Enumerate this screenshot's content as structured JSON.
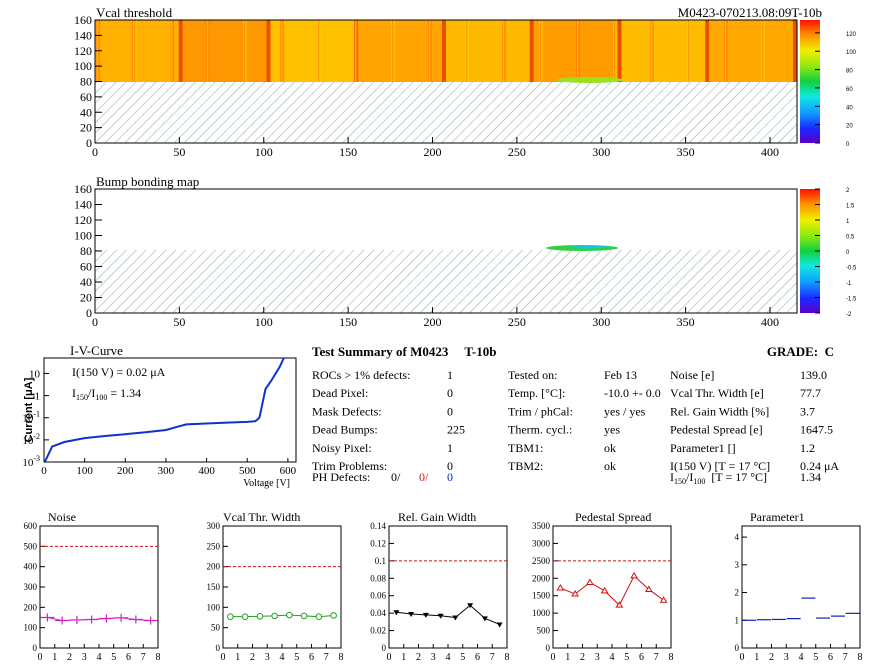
{
  "header": {
    "module_id": "M0423-070213.08:09T-10b"
  },
  "vcal_map": {
    "title": "Vcal threshold",
    "x_ticks": [
      "0",
      "50",
      "100",
      "150",
      "200",
      "250",
      "300",
      "350",
      "400"
    ],
    "y_ticks": [
      "0",
      "20",
      "40",
      "60",
      "80",
      "100",
      "120",
      "140",
      "160"
    ],
    "z_ticks": [
      "0",
      "20",
      "40",
      "60",
      "80",
      "100",
      "120"
    ]
  },
  "bump_map": {
    "title": "Bump bonding map",
    "x_ticks": [
      "0",
      "50",
      "100",
      "150",
      "200",
      "250",
      "300",
      "350",
      "400"
    ],
    "y_ticks": [
      "0",
      "20",
      "40",
      "60",
      "80",
      "100",
      "120",
      "140",
      "160"
    ],
    "z_ticks": [
      "-2",
      "-1.5",
      "-1",
      "-0.5",
      "0",
      "0.5",
      "1",
      "1.5",
      "2"
    ]
  },
  "iv": {
    "title": "I-V-Curve",
    "xlabel": "Voltage [V]",
    "ylabel": "Current [μA]",
    "x_ticks": [
      "0",
      "100",
      "200",
      "300",
      "400",
      "500",
      "600"
    ],
    "note1": "I(150 V) = 0.02 μA",
    "note2_a": "I",
    "note2_sub1": "150",
    "note2_b": "/I",
    "note2_sub2": "100",
    "note2_c": "=  1.34"
  },
  "summary": {
    "title": "Test Summary of M0423     T-10b",
    "grade": "GRADE:  C",
    "col1": [
      {
        "label": "ROCs > 1% defects:",
        "value": "1"
      },
      {
        "label": "Dead Pixel:",
        "value": "0"
      },
      {
        "label": "Mask Defects:",
        "value": "0"
      },
      {
        "label": "Dead Bumps:",
        "value": "225"
      },
      {
        "label": "Noisy Pixel:",
        "value": "1"
      },
      {
        "label": "Trim Problems:",
        "value": "0"
      }
    ],
    "ph_label": "PH Defects:",
    "ph_v1": "0/",
    "ph_v2": "0/",
    "ph_v3": "0",
    "col2": [
      {
        "label": "Tested on:",
        "value": "Feb 13"
      },
      {
        "label": "Temp. [°C]:",
        "value": "-10.0 +- 0.0"
      },
      {
        "label": "Trim / phCal:",
        "value": "yes / yes"
      },
      {
        "label": "Therm. cycl.:",
        "value": "yes"
      },
      {
        "label": "TBM1:",
        "value": "ok"
      },
      {
        "label": "TBM2:",
        "value": "ok"
      }
    ],
    "col3": [
      {
        "label": "Noise [e]",
        "value": "139.0"
      },
      {
        "label": "Vcal Thr. Width [e]",
        "value": "77.7"
      },
      {
        "label": "Rel. Gain Width [%]",
        "value": "3.7"
      },
      {
        "label": "Pedestal Spread [e]",
        "value": "1647.5"
      },
      {
        "label": "Parameter1 []",
        "value": "1.2"
      },
      {
        "label": "I(150 V) [T = 17 °C]",
        "value": "0.24 μA"
      }
    ],
    "ratio_label_a": "I",
    "ratio_sub1": "150",
    "ratio_label_b": "/I",
    "ratio_sub2": "100",
    "ratio_label_c": "  [T = 17 °C]",
    "ratio_value": "1.34"
  },
  "colors": {
    "noise": "#d020c8",
    "vcal": "#20a020",
    "gain": "#000000",
    "pedestal": "#d01010",
    "param": "#1020c0",
    "iv": "#1030d0",
    "ref": "#d01010"
  },
  "chart_data": [
    {
      "type": "line",
      "title": "Noise",
      "x": [
        0.5,
        1.5,
        2.5,
        3.5,
        4.5,
        5.5,
        6.5,
        7.5
      ],
      "values": [
        150,
        135,
        138,
        140,
        145,
        148,
        140,
        135
      ],
      "ylim": [
        0,
        600
      ],
      "xlim": [
        0,
        8
      ],
      "reference": 500,
      "y_ticks": [
        "0",
        "100",
        "200",
        "300",
        "400",
        "500",
        "600"
      ]
    },
    {
      "type": "line",
      "title": "Vcal Thr. Width",
      "x": [
        0.5,
        1.5,
        2.5,
        3.5,
        4.5,
        5.5,
        6.5,
        7.5
      ],
      "values": [
        77,
        77,
        78,
        79,
        81,
        79,
        77,
        80
      ],
      "ylim": [
        0,
        300
      ],
      "xlim": [
        0,
        8
      ],
      "reference": 200,
      "y_ticks": [
        "0",
        "50",
        "100",
        "150",
        "200",
        "250",
        "300"
      ]
    },
    {
      "type": "line",
      "title": "Rel. Gain Width",
      "x": [
        0.5,
        1.5,
        2.5,
        3.5,
        4.5,
        5.5,
        6.5,
        7.5
      ],
      "values": [
        0.041,
        0.039,
        0.038,
        0.037,
        0.035,
        0.049,
        0.034,
        0.027
      ],
      "ylim": [
        0,
        0.14
      ],
      "xlim": [
        0,
        8
      ],
      "reference": 0.1,
      "y_ticks": [
        "0",
        "0.02",
        "0.04",
        "0.06",
        "0.08",
        "0.1",
        "0.12",
        "0.14"
      ]
    },
    {
      "type": "line",
      "title": "Pedestal Spread",
      "x": [
        0.5,
        1.5,
        2.5,
        3.5,
        4.5,
        5.5,
        6.5,
        7.5
      ],
      "values": [
        1720,
        1550,
        1880,
        1640,
        1230,
        2070,
        1680,
        1370
      ],
      "ylim": [
        0,
        3500
      ],
      "xlim": [
        0,
        8
      ],
      "reference": 2500,
      "y_ticks": [
        "0",
        "500",
        "1000",
        "1500",
        "2000",
        "2500",
        "3000",
        "3500"
      ]
    },
    {
      "type": "scatter",
      "title": "Parameter1",
      "x": [
        0.5,
        1.5,
        2.5,
        3.5,
        4.5,
        5.5,
        6.5,
        7.5
      ],
      "values": [
        1.0,
        1.02,
        1.03,
        1.06,
        1.8,
        1.08,
        1.15,
        1.25
      ],
      "ylim": [
        0,
        4.4
      ],
      "xlim": [
        0,
        8
      ],
      "y_ticks": [
        "0",
        "1",
        "2",
        "3",
        "4"
      ]
    },
    {
      "type": "line",
      "title": "I-V-Curve",
      "x": [
        2,
        20,
        50,
        100,
        150,
        200,
        250,
        300,
        330,
        350,
        400,
        450,
        500,
        520,
        530,
        545,
        560,
        580,
        590
      ],
      "values": [
        0.001,
        0.005,
        0.008,
        0.012,
        0.015,
        0.018,
        0.022,
        0.028,
        0.04,
        0.05,
        0.055,
        0.06,
        0.065,
        0.07,
        0.1,
        2,
        5,
        20,
        50
      ],
      "ylim": [
        0.001,
        50
      ],
      "xlim": [
        0,
        620
      ],
      "yscale": "log"
    }
  ]
}
